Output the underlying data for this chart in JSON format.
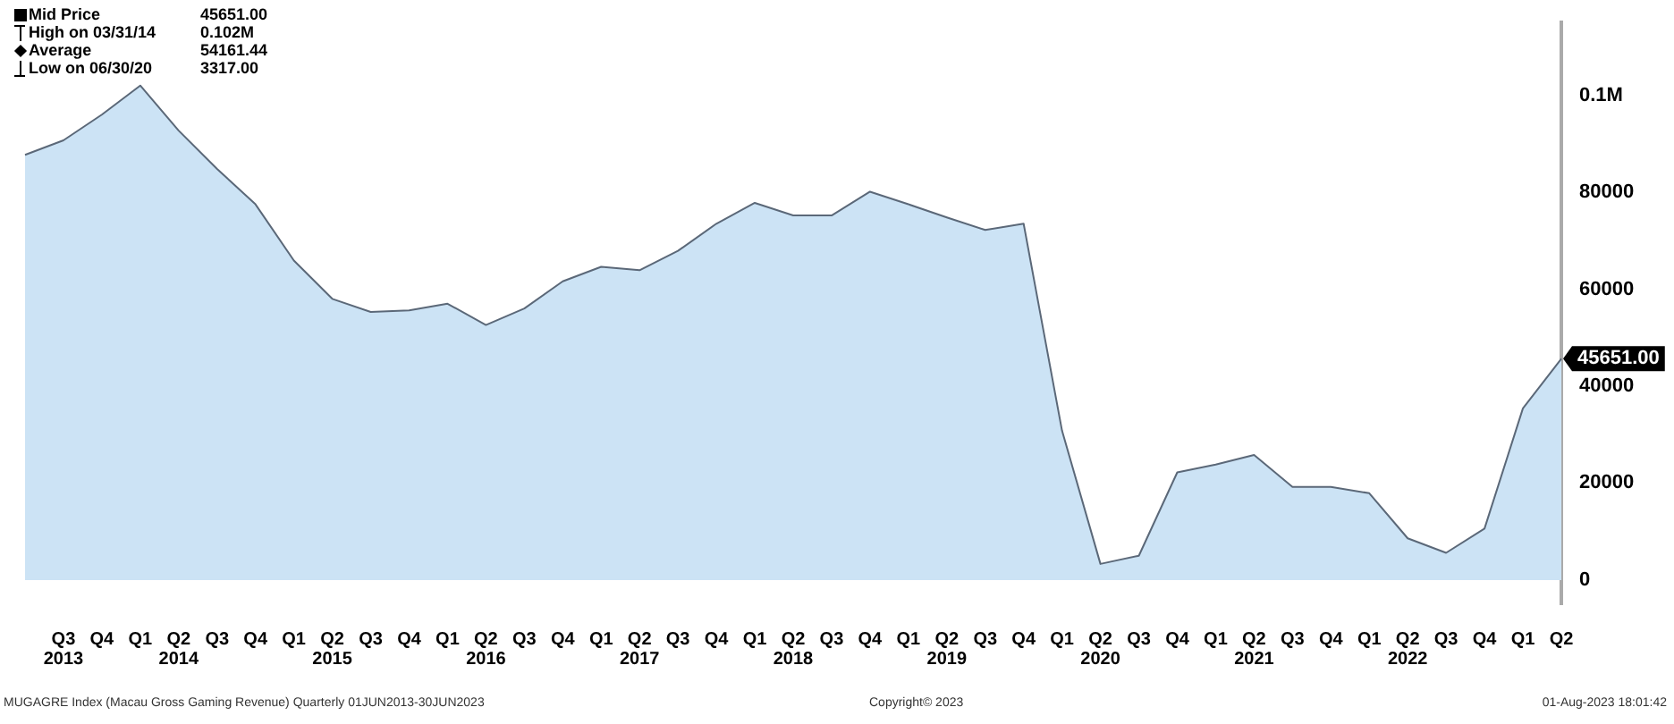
{
  "chart_data": {
    "type": "area",
    "categories": [
      null,
      "Q3 2013",
      "Q4",
      "Q1",
      "Q2 2014",
      "Q3",
      "Q4",
      "Q1",
      "Q2 2015",
      "Q3",
      "Q4",
      "Q1",
      "Q2 2016",
      "Q3",
      "Q4",
      "Q1",
      "Q2 2017",
      "Q3",
      "Q4",
      "Q1",
      "Q2 2018",
      "Q3",
      "Q4",
      "Q1",
      "Q2 2019",
      "Q3",
      "Q4",
      "Q1",
      "Q2 2020",
      "Q3",
      "Q4",
      "Q1",
      "Q2 2021",
      "Q3",
      "Q4",
      "Q1",
      "Q2 2022",
      "Q3",
      "Q4",
      "Q1",
      "Q2"
    ],
    "series": [
      {
        "name": "Mid Price",
        "color": "#cce3f5",
        "values": [
          87700,
          90700,
          96000,
          102000,
          92700,
          84800,
          77500,
          65900,
          58000,
          55300,
          55600,
          57000,
          52600,
          56000,
          61600,
          64600,
          63900,
          67900,
          73500,
          77800,
          75200,
          75200,
          80100,
          77500,
          74800,
          72200,
          73500,
          30800,
          3317,
          5000,
          22200,
          23800,
          25800,
          19200,
          19200,
          17900,
          8600,
          5600,
          10600,
          35400,
          45651
        ]
      }
    ],
    "ylim": [
      -5000,
      115000
    ],
    "yticks": [
      0,
      20000,
      40000,
      60000,
      80000,
      {
        "value": 100000,
        "label": "0.1M"
      }
    ],
    "grid": false,
    "legend": "top left",
    "annotations": [
      "45651.00",
      "High on 03/31/14",
      "0.102M",
      "Average",
      "54161.44",
      "Low on 06/30/20",
      "3317.00",
      "45651.00",
      "MUGAGRE Index (Macau Gross Gaming Revenue)  Quarterly 01JUN2013-30JUN2023",
      "Copyright© 2023",
      "01-Aug-2023 18:01:42"
    ]
  }
}
